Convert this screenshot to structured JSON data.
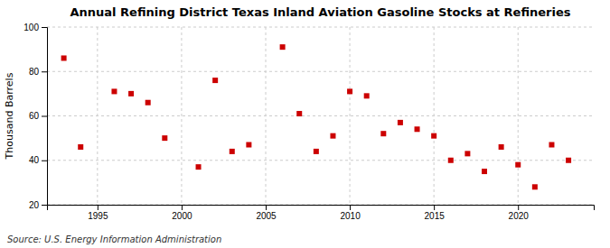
{
  "chart_data": {
    "type": "scatter",
    "title": "Annual Refining District Texas Inland Aviation Gasoline Stocks at Refineries",
    "ylabel": "Thousand Barrels",
    "source": "Source: U.S. Energy Information Administration",
    "x": [
      1993,
      1994,
      1996,
      1997,
      1998,
      1999,
      2001,
      2002,
      2003,
      2004,
      2006,
      2007,
      2008,
      2009,
      2010,
      2011,
      2012,
      2013,
      2014,
      2015,
      2016,
      2017,
      2018,
      2019,
      2020,
      2021,
      2022,
      2023
    ],
    "values": [
      86,
      46,
      71,
      70,
      66,
      50,
      37,
      76,
      44,
      47,
      91,
      61,
      44,
      51,
      71,
      69,
      52,
      57,
      54,
      51,
      40,
      43,
      35,
      46,
      38,
      28,
      47,
      40
    ],
    "color": "#cc0000",
    "marker": "square",
    "xlim": [
      1992,
      2024.5
    ],
    "xticks": [
      1995,
      2000,
      2005,
      2010,
      2015,
      2020
    ],
    "ylim": [
      20,
      100
    ],
    "yticks": [
      20,
      40,
      60,
      80,
      100
    ],
    "grid": true
  }
}
